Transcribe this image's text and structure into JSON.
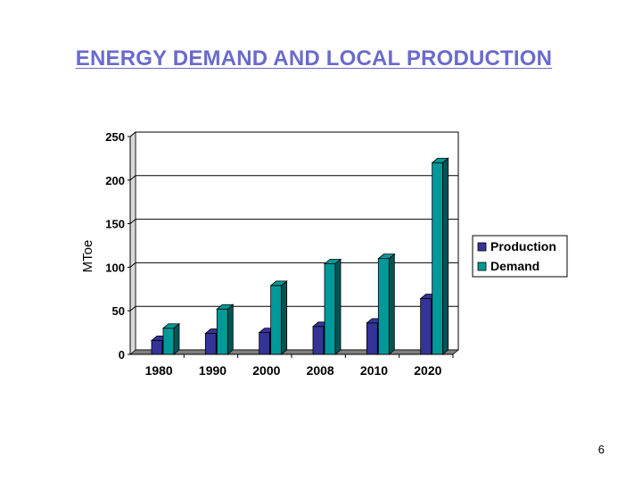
{
  "slide": {
    "title": "ENERGY DEMAND AND LOCAL PRODUCTION",
    "page_number": "6"
  },
  "colors": {
    "production": "#333399",
    "demand": "#009999",
    "title": "#6a6acd"
  },
  "chart_data": {
    "type": "bar",
    "title": "",
    "xlabel": "",
    "ylabel": "MToe",
    "categories": [
      "1980",
      "1990",
      "2000",
      "2008",
      "2010",
      "2020"
    ],
    "series": [
      {
        "name": "Production",
        "values": [
          16,
          24,
          25,
          32,
          36,
          64
        ]
      },
      {
        "name": "Demand",
        "values": [
          30,
          52,
          79,
          104,
          110,
          220
        ]
      }
    ],
    "ylim": [
      0,
      250
    ],
    "yticks": [
      0,
      50,
      100,
      150,
      200,
      250
    ],
    "grid": true,
    "legend": "right"
  }
}
